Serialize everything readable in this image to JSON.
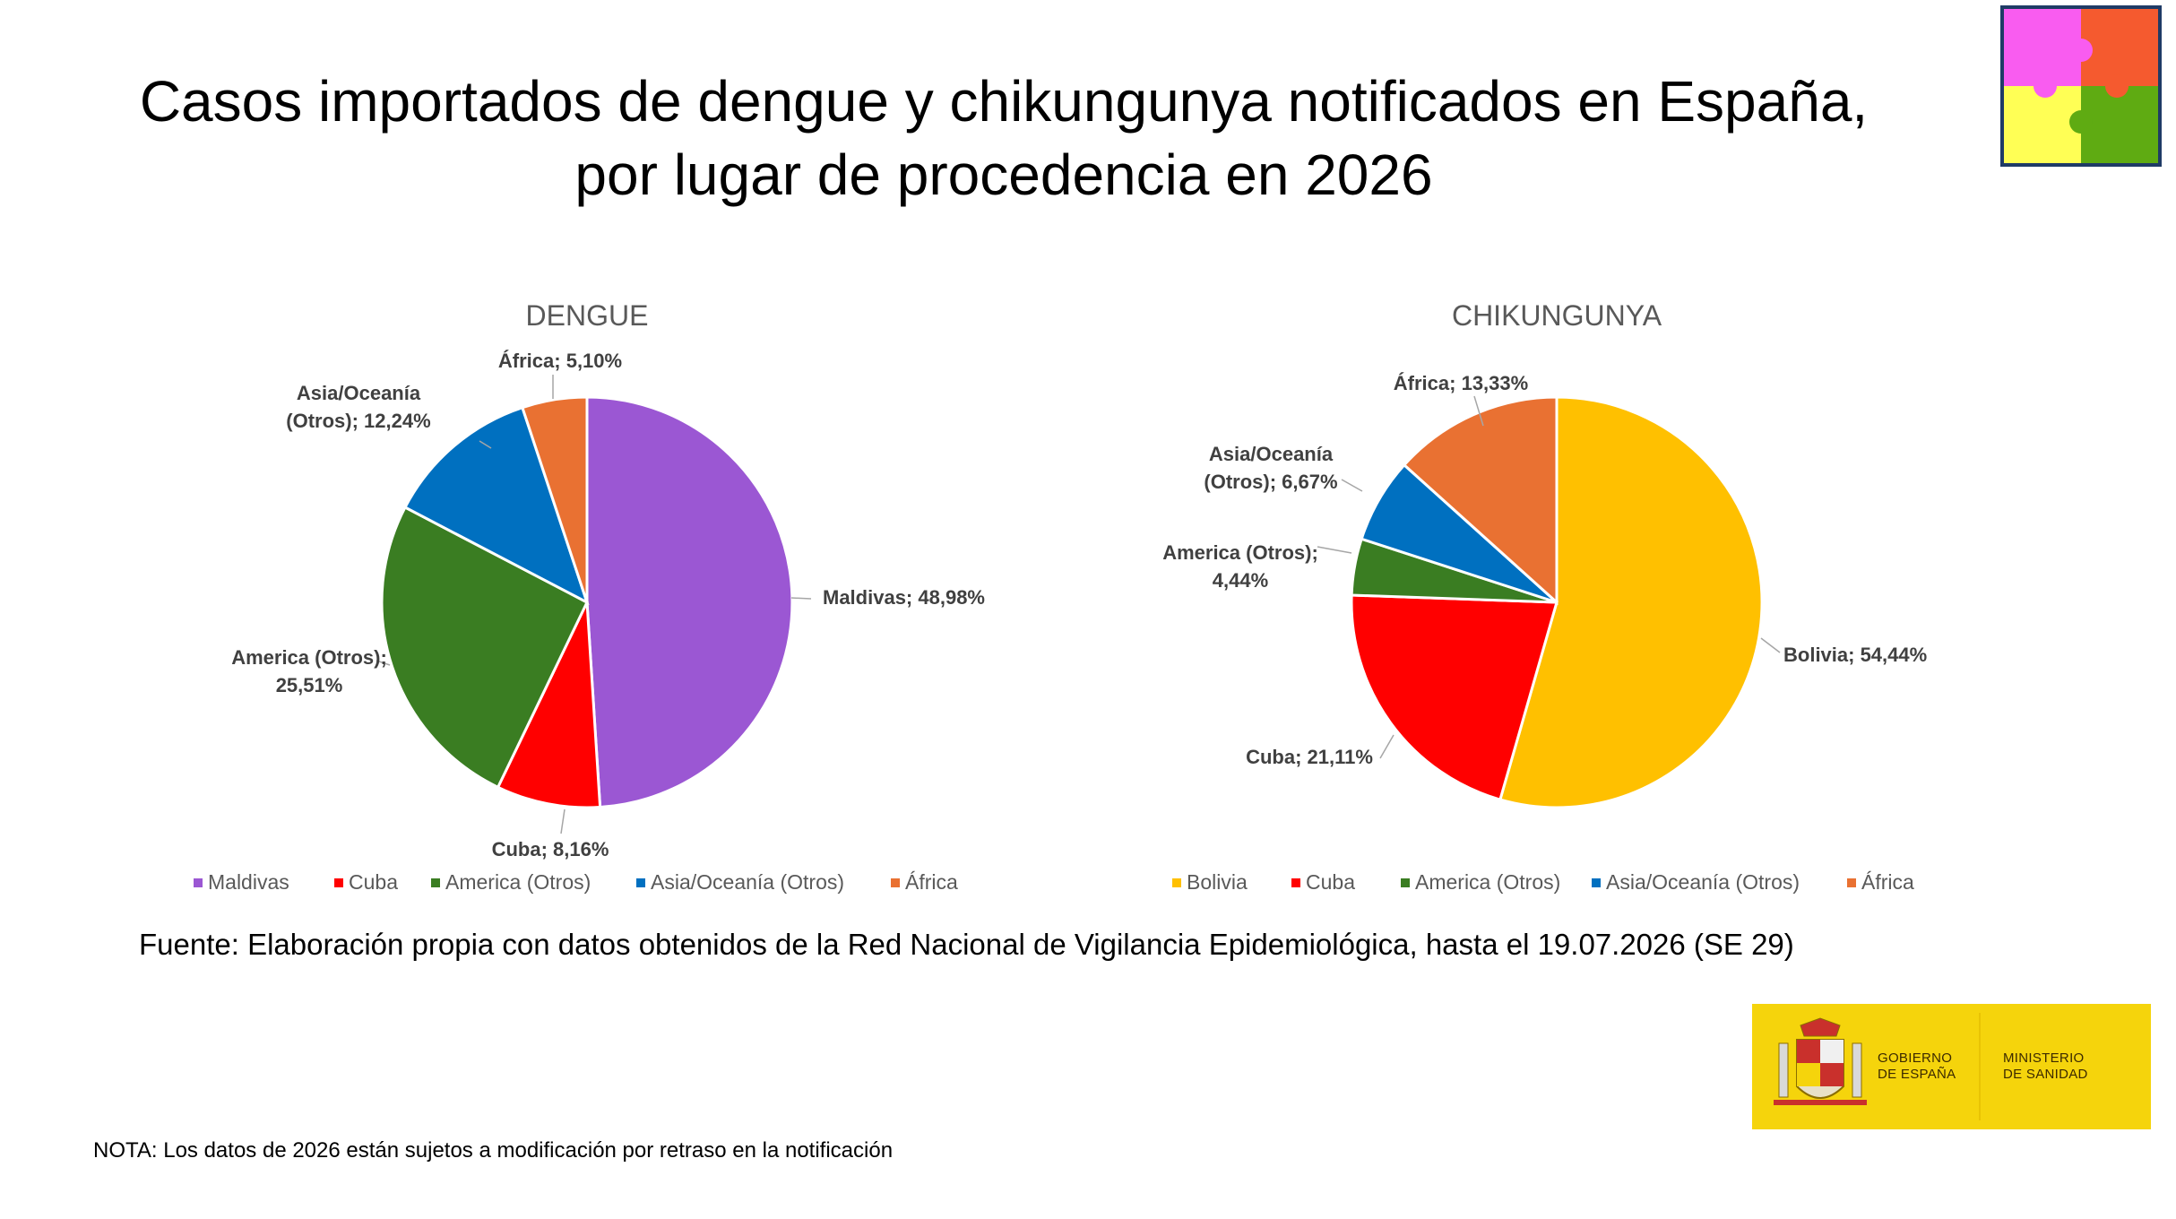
{
  "slide": {
    "title_line1": "Casos importados de dengue y chikungunya notificados en España,",
    "title_line2": "por lugar de procedencia en 2026",
    "source": "Fuente: Elaboración propia con datos obtenidos de la Red Nacional de Vigilancia Epidemiológica, hasta el 19.07.2026 (SE 29)",
    "note": "NOTA: Los datos de 2026 están sujetos a modificación por retraso en la notificación"
  },
  "gov_logo": {
    "line1": "GOBIERNO\nDE ESPAÑA",
    "line2": "MINISTERIO\nDE SANIDAD"
  },
  "chart_data": [
    {
      "type": "pie",
      "title": "DENGUE",
      "categories": [
        "Maldivas",
        "Cuba",
        "America (Otros)",
        "Asia/Oceanía (Otros)",
        "África"
      ],
      "values": [
        48.98,
        8.16,
        25.51,
        12.24,
        5.1
      ],
      "colors": [
        "#9b57d3",
        "#ff0000",
        "#3a7d22",
        "#0070c0",
        "#e97132"
      ],
      "labels": [
        [
          "Maldivas; 48,98%"
        ],
        [
          "Cuba; 8,16%"
        ],
        [
          "America (Otros);",
          "25,51%"
        ],
        [
          "Asia/Oceanía",
          "(Otros); 12,24%"
        ],
        [
          "África; 5,10%"
        ]
      ],
      "legend": [
        "Maldivas",
        "Cuba",
        "America (Otros)",
        "Asia/Oceanía (Otros)",
        "África"
      ],
      "legend_position": "bottom"
    },
    {
      "type": "pie",
      "title": "CHIKUNGUNYA",
      "categories": [
        "Bolivia",
        "Cuba",
        "America (Otros)",
        "Asia/Oceanía (Otros)",
        "África"
      ],
      "values": [
        54.44,
        21.11,
        4.44,
        6.67,
        13.33
      ],
      "colors": [
        "#ffc000",
        "#ff0000",
        "#3a7d22",
        "#0070c0",
        "#e97132"
      ],
      "labels": [
        [
          "Bolivia; 54,44%"
        ],
        [
          "Cuba; 21,11%"
        ],
        [
          "America (Otros);",
          "4,44%"
        ],
        [
          "Asia/Oceanía",
          "(Otros); 6,67%"
        ],
        [
          "África; 13,33%"
        ]
      ],
      "legend": [
        "Bolivia",
        "Cuba",
        "America (Otros)",
        "Asia/Oceanía (Otros)",
        "África"
      ],
      "legend_position": "bottom"
    }
  ]
}
